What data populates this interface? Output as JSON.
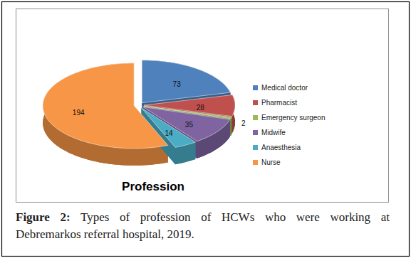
{
  "chart_data": {
    "type": "pie",
    "title": "Profession",
    "categories": [
      "Medical doctor",
      "Pharmacist",
      "Emergency surgeon",
      "Midwife",
      "Anaesthesia",
      "Nurse"
    ],
    "values": [
      73,
      28,
      2,
      35,
      14,
      194
    ],
    "colors": [
      "#4f81bd",
      "#c0504d",
      "#9bbb59",
      "#8064a2",
      "#4bacc6",
      "#f79646"
    ],
    "data_labels": true,
    "legend": "right"
  },
  "figure": {
    "label": "Figure 2:",
    "caption": [
      "Types of profession of HCWs who were working at",
      "Debremarkos referral hospital, 2019."
    ]
  }
}
